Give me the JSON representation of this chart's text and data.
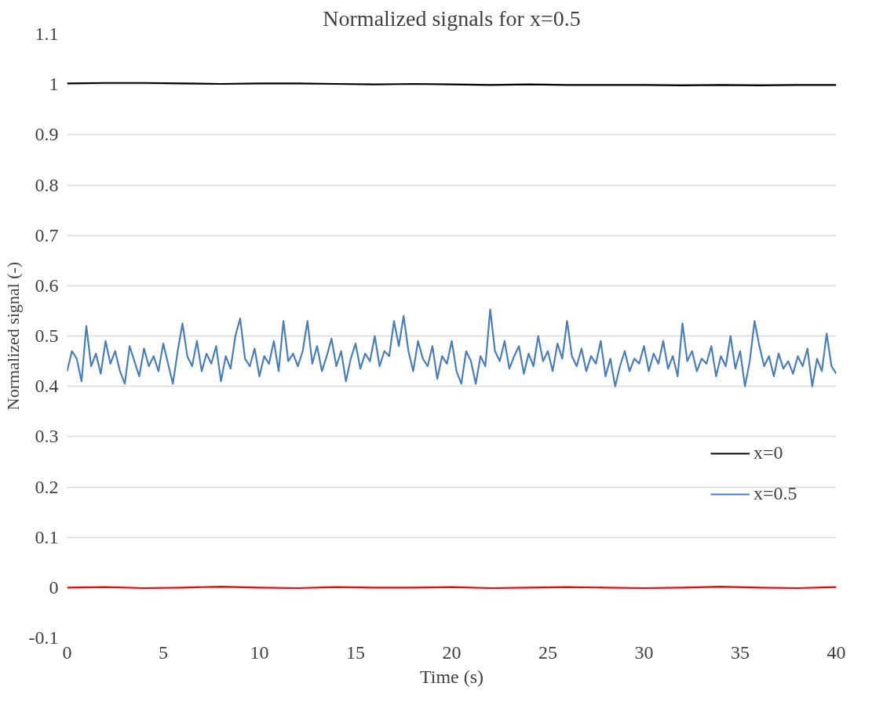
{
  "chart_data": {
    "type": "line",
    "title": "Normalized signals for x=0.5",
    "xlabel": "Time (s)",
    "ylabel": "Normalized signal (-)",
    "x": [
      0,
      0.25,
      0.5,
      0.75,
      1,
      1.25,
      1.5,
      1.75,
      2,
      2.25,
      2.5,
      2.75,
      3,
      3.25,
      3.5,
      3.75,
      4,
      4.25,
      4.5,
      4.75,
      5,
      5.25,
      5.5,
      5.75,
      6,
      6.25,
      6.5,
      6.75,
      7,
      7.25,
      7.5,
      7.75,
      8,
      8.25,
      8.5,
      8.75,
      9,
      9.25,
      9.5,
      9.75,
      10,
      10.25,
      10.5,
      10.75,
      11,
      11.25,
      11.5,
      11.75,
      12,
      12.25,
      12.5,
      12.75,
      13,
      13.25,
      13.5,
      13.75,
      14,
      14.25,
      14.5,
      14.75,
      15,
      15.25,
      15.5,
      15.75,
      16,
      16.25,
      16.5,
      16.75,
      17,
      17.25,
      17.5,
      17.75,
      18,
      18.25,
      18.5,
      18.75,
      19,
      19.25,
      19.5,
      19.75,
      20,
      20.25,
      20.5,
      20.75,
      21,
      21.25,
      21.5,
      21.75,
      22,
      22.25,
      22.5,
      22.75,
      23,
      23.25,
      23.5,
      23.75,
      24,
      24.25,
      24.5,
      24.75,
      25,
      25.25,
      25.5,
      25.75,
      26,
      26.25,
      26.5,
      26.75,
      27,
      27.25,
      27.5,
      27.75,
      28,
      28.25,
      28.5,
      28.75,
      29,
      29.25,
      29.5,
      29.75,
      30,
      30.25,
      30.5,
      30.75,
      31,
      31.25,
      31.5,
      31.75,
      32,
      32.25,
      32.5,
      32.75,
      33,
      33.25,
      33.5,
      33.75,
      34,
      34.25,
      34.5,
      34.75,
      35,
      35.25,
      35.5,
      35.75,
      36,
      36.25,
      36.5,
      36.75,
      37,
      37.25,
      37.5,
      37.75,
      38,
      38.25,
      38.5,
      38.75,
      39,
      39.25,
      39.5,
      39.75,
      40
    ],
    "series": [
      {
        "name": "x=0",
        "color": "#000000",
        "x": [
          0,
          2,
          4,
          6,
          8,
          10,
          12,
          14,
          16,
          18,
          20,
          22,
          24,
          26,
          28,
          30,
          32,
          34,
          36,
          38,
          40
        ],
        "values": [
          1.002,
          1.003,
          1.003,
          1.002,
          1.001,
          1.002,
          1.002,
          1.001,
          1.0,
          1.001,
          1.0,
          0.999,
          1.0,
          0.999,
          0.999,
          0.999,
          0.998,
          0.999,
          0.998,
          0.999,
          0.999
        ]
      },
      {
        "name": "x=0.5",
        "color": "#4a7ebb",
        "values": [
          0.43,
          0.47,
          0.455,
          0.41,
          0.52,
          0.44,
          0.465,
          0.425,
          0.49,
          0.445,
          0.47,
          0.43,
          0.405,
          0.48,
          0.45,
          0.42,
          0.475,
          0.44,
          0.46,
          0.43,
          0.485,
          0.445,
          0.405,
          0.47,
          0.525,
          0.46,
          0.44,
          0.49,
          0.43,
          0.465,
          0.445,
          0.48,
          0.41,
          0.46,
          0.435,
          0.5,
          0.535,
          0.455,
          0.44,
          0.475,
          0.42,
          0.46,
          0.445,
          0.49,
          0.43,
          0.53,
          0.45,
          0.465,
          0.44,
          0.47,
          0.53,
          0.445,
          0.48,
          0.43,
          0.46,
          0.495,
          0.44,
          0.47,
          0.41,
          0.455,
          0.485,
          0.435,
          0.465,
          0.45,
          0.5,
          0.44,
          0.47,
          0.46,
          0.53,
          0.48,
          0.54,
          0.47,
          0.43,
          0.49,
          0.455,
          0.44,
          0.48,
          0.415,
          0.46,
          0.445,
          0.49,
          0.43,
          0.405,
          0.47,
          0.45,
          0.405,
          0.46,
          0.44,
          0.553,
          0.47,
          0.45,
          0.49,
          0.435,
          0.46,
          0.48,
          0.425,
          0.465,
          0.44,
          0.5,
          0.45,
          0.47,
          0.43,
          0.485,
          0.455,
          0.53,
          0.46,
          0.44,
          0.475,
          0.43,
          0.46,
          0.445,
          0.49,
          0.42,
          0.455,
          0.4,
          0.44,
          0.47,
          0.43,
          0.455,
          0.445,
          0.48,
          0.43,
          0.465,
          0.445,
          0.49,
          0.435,
          0.46,
          0.42,
          0.525,
          0.45,
          0.47,
          0.43,
          0.455,
          0.445,
          0.48,
          0.42,
          0.46,
          0.44,
          0.5,
          0.435,
          0.47,
          0.4,
          0.45,
          0.53,
          0.48,
          0.44,
          0.46,
          0.42,
          0.465,
          0.435,
          0.45,
          0.425,
          0.46,
          0.44,
          0.475,
          0.4,
          0.455,
          0.43,
          0.505,
          0.44,
          0.425
        ]
      },
      {
        "color": "#ff0000",
        "x": [
          0,
          2,
          4,
          6,
          8,
          10,
          12,
          14,
          16,
          18,
          20,
          22,
          24,
          26,
          28,
          30,
          32,
          34,
          36,
          38,
          40
        ],
        "values": [
          0,
          0.001,
          -0.001,
          0,
          0.002,
          0,
          -0.001,
          0.001,
          0,
          0,
          0.001,
          -0.001,
          0,
          0.001,
          0,
          -0.001,
          0,
          0.002,
          0,
          -0.001,
          0.001
        ]
      }
    ],
    "xlim": [
      0,
      40
    ],
    "xticks": [
      0,
      5,
      10,
      15,
      20,
      25,
      30,
      35,
      40
    ],
    "ylim": [
      -0.1,
      1.1
    ],
    "yticks": [
      -0.1,
      0,
      0.1,
      0.2,
      0.3,
      0.4,
      0.5,
      0.6,
      0.7,
      0.8,
      0.9,
      1,
      1.1
    ],
    "grid": "y",
    "legend": "right",
    "line_style": "solid",
    "marker": "none"
  }
}
